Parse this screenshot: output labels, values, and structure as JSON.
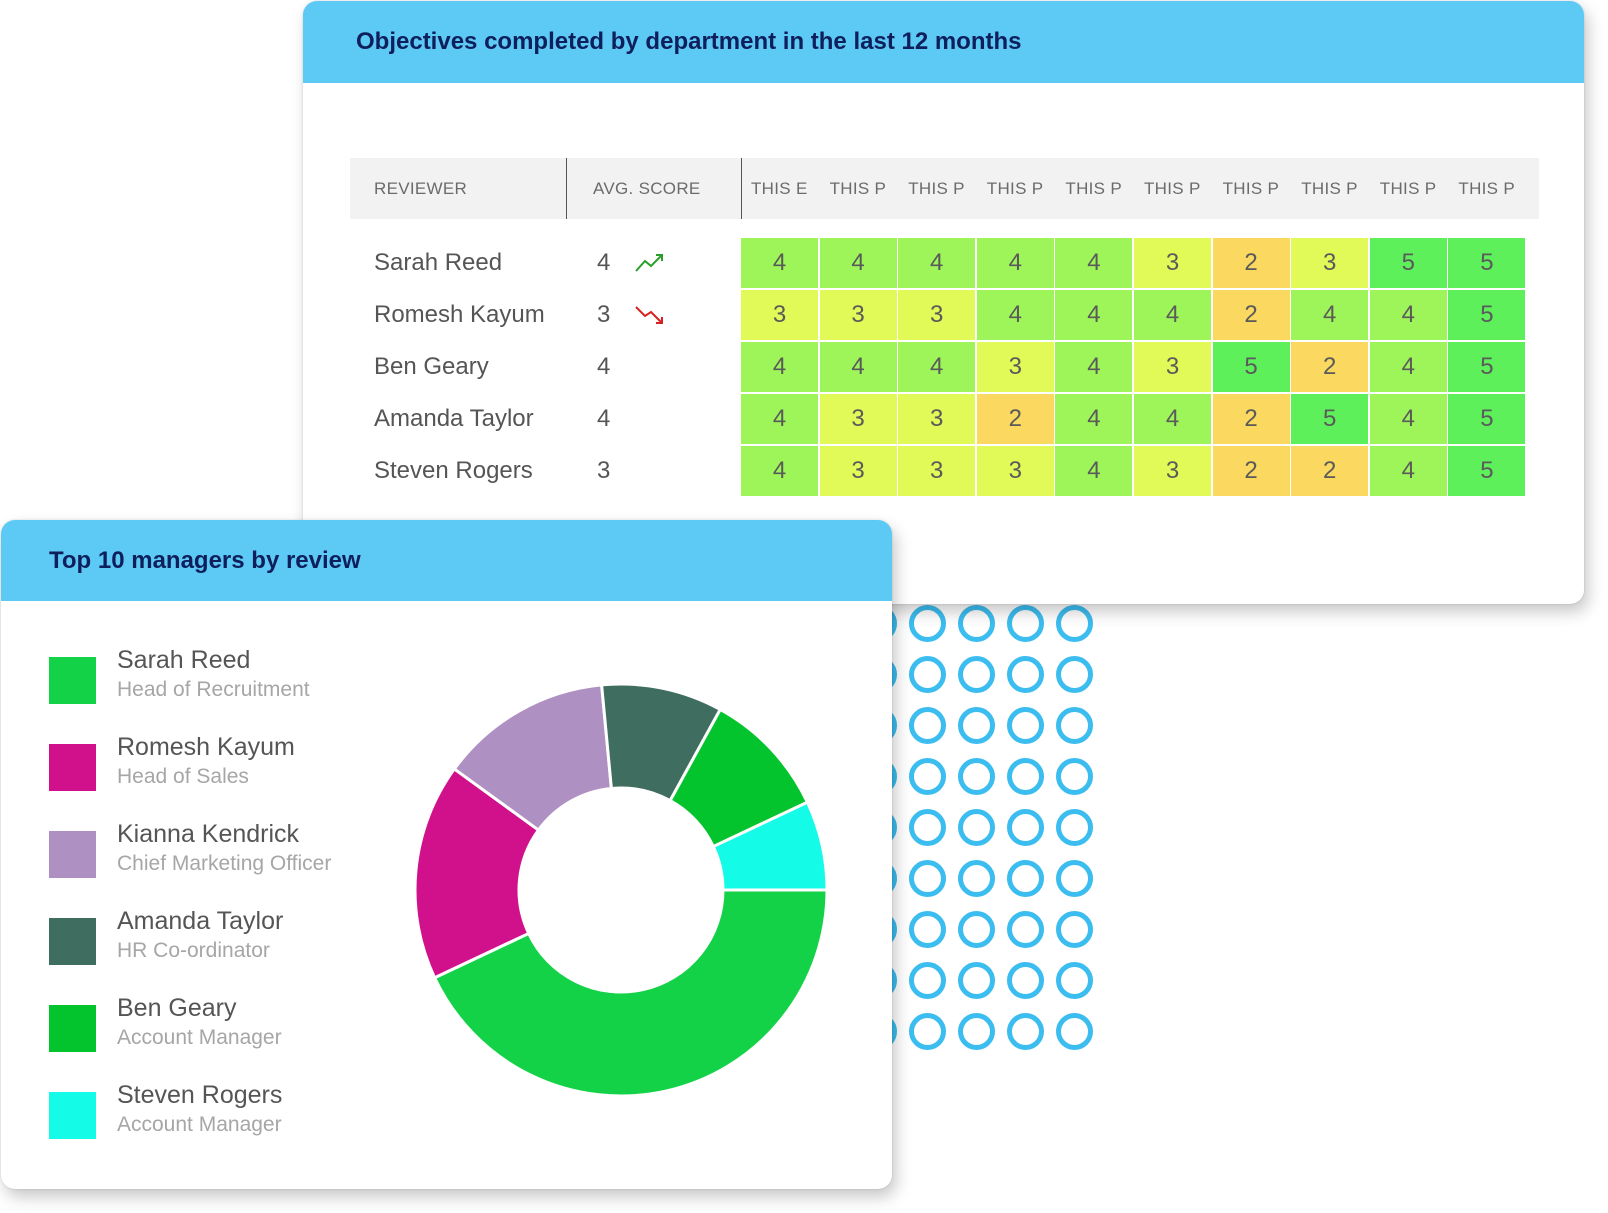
{
  "heatmap_card": {
    "title": "Objectives completed by department in the last 12 months",
    "columns": {
      "reviewer": "REVIEWER",
      "avg_score": "AVG. SCORE",
      "periods": [
        "THIS E",
        "THIS P",
        "THIS P",
        "THIS P",
        "THIS P",
        "THIS P",
        "THIS P",
        "THIS P",
        "THIS P",
        "THIS P"
      ]
    },
    "rows": [
      {
        "name": "Sarah Reed",
        "score": "4",
        "trend": "up",
        "cells": [
          4,
          4,
          4,
          4,
          4,
          3,
          2,
          3,
          5,
          5
        ]
      },
      {
        "name": "Romesh Kayum",
        "score": "3",
        "trend": "down",
        "cells": [
          3,
          3,
          3,
          4,
          4,
          4,
          2,
          4,
          4,
          5
        ]
      },
      {
        "name": "Ben Geary",
        "score": "4",
        "trend": "none",
        "cells": [
          4,
          4,
          4,
          3,
          4,
          3,
          5,
          2,
          4,
          5
        ]
      },
      {
        "name": "Amanda Taylor",
        "score": "4",
        "trend": "none",
        "cells": [
          4,
          3,
          3,
          2,
          4,
          4,
          2,
          5,
          4,
          5
        ]
      },
      {
        "name": "Steven Rogers",
        "score": "3",
        "trend": "none",
        "cells": [
          4,
          3,
          3,
          3,
          4,
          3,
          2,
          2,
          4,
          5
        ]
      }
    ],
    "score_colors": {
      "2": "#fbd860",
      "3": "#e1fa58",
      "4": "#9ef55a",
      "5": "#5df05b"
    },
    "trend_colors": {
      "up": "#2aa02a",
      "down": "#d82020"
    }
  },
  "donut_card": {
    "title": "Top 10 managers by review",
    "legend": [
      {
        "name": "Sarah Reed",
        "role": "Head of Recruitment",
        "color": "#14d248"
      },
      {
        "name": "Romesh Kayum",
        "role": "Head of Sales",
        "color": "#d1118b"
      },
      {
        "name": "Kianna Kendrick",
        "role": "Chief Marketing Officer",
        "color": "#af90c2"
      },
      {
        "name": "Amanda Taylor",
        "role": "HR Co-ordinator",
        "color": "#3f6e60"
      },
      {
        "name": "Ben Geary",
        "role": "Account Manager",
        "color": "#04c42e"
      },
      {
        "name": "Steven Rogers",
        "role": "Account Manager",
        "color": "#14fbe8"
      }
    ]
  },
  "chart_data": {
    "type": "pie",
    "categories": [
      "Sarah Reed",
      "Romesh Kayum",
      "Kianna Kendrick",
      "Amanda Taylor",
      "Ben Geary",
      "Steven Rogers"
    ],
    "values": [
      43,
      17,
      13.5,
      9.5,
      10,
      7
    ],
    "colors": [
      "#14d248",
      "#d1118b",
      "#af90c2",
      "#3f6e60",
      "#04c42e",
      "#14fbe8"
    ],
    "title": "Top 10 managers by review",
    "donut": true
  },
  "decoration": {
    "dot_color": "#3cbdf0"
  }
}
